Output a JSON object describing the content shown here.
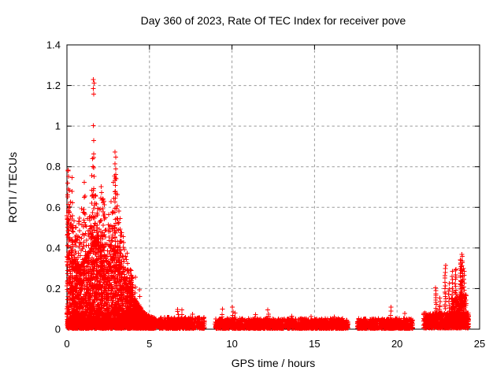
{
  "chart_data": {
    "type": "scatter",
    "title": "Day 360 of 2023, Rate Of TEC Index for receiver pove",
    "xlabel": "GPS time / hours",
    "ylabel": "ROTI / TECUs",
    "xlim": [
      0,
      25
    ],
    "ylim": [
      0,
      1.4
    ],
    "xticks": [
      [
        0,
        "0"
      ],
      [
        5,
        "5"
      ],
      [
        10,
        "10"
      ],
      [
        15,
        "15"
      ],
      [
        20,
        "20"
      ],
      [
        25,
        "25"
      ]
    ],
    "yticks": [
      [
        0,
        "0"
      ],
      [
        0.2,
        "0.2"
      ],
      [
        0.4,
        "0.4"
      ],
      [
        0.6,
        "0.6"
      ],
      [
        0.8,
        "0.8"
      ],
      [
        1,
        "1"
      ],
      [
        1.2,
        "1.2"
      ],
      [
        1.4,
        "1.4"
      ]
    ],
    "grid": true,
    "legend": "none",
    "marker": {
      "shape": "plus",
      "color": "#ff0000",
      "size": 7
    },
    "axis_color": "#000000",
    "grid_color": "#9b9b9b",
    "data_gaps_hours": [
      [
        8.35,
        8.97
      ],
      [
        17.05,
        17.6
      ],
      [
        20.95,
        21.6
      ],
      [
        24.35,
        25
      ]
    ],
    "storm_envelope": [
      [
        0.0,
        0.55,
        0.8
      ],
      [
        0.25,
        0.38,
        0.62
      ],
      [
        0.5,
        0.3,
        0.5
      ],
      [
        0.8,
        0.3,
        0.55
      ],
      [
        1.05,
        0.33,
        0.72
      ],
      [
        1.3,
        0.36,
        0.5
      ],
      [
        1.55,
        0.42,
        0.85
      ],
      [
        1.8,
        0.44,
        0.62
      ],
      [
        2.05,
        0.4,
        0.7
      ],
      [
        2.3,
        0.34,
        0.63
      ],
      [
        2.55,
        0.32,
        0.56
      ],
      [
        2.8,
        0.36,
        0.75
      ],
      [
        2.95,
        0.38,
        0.88
      ],
      [
        3.15,
        0.32,
        0.6
      ],
      [
        3.4,
        0.27,
        0.45
      ],
      [
        3.65,
        0.22,
        0.36
      ],
      [
        3.9,
        0.17,
        0.28
      ],
      [
        4.15,
        0.14,
        0.22
      ],
      [
        4.4,
        0.11,
        0.17
      ],
      [
        4.7,
        0.08,
        0.12
      ],
      [
        5.0,
        0.06,
        0.1
      ],
      [
        5.4,
        0.05,
        0.08
      ]
    ],
    "storm": {
      "n_dense": 2600,
      "n_fringe": 420,
      "xmax": 5.4,
      "fringe_xmax": 4.0
    },
    "bands": [
      {
        "x0": 0.0,
        "x1": 5.4,
        "n": 1100,
        "y0": 0.004,
        "amp": 0.05,
        "exp": 1.0
      },
      {
        "x0": 5.4,
        "x1": 8.35,
        "n": 520,
        "y0": 0.004,
        "amp": 0.055,
        "exp": 1.8
      },
      {
        "x0": 8.97,
        "x1": 17.05,
        "n": 1600,
        "y0": 0.004,
        "amp": 0.048,
        "exp": 1.8
      },
      {
        "x0": 17.6,
        "x1": 20.95,
        "n": 680,
        "y0": 0.004,
        "amp": 0.048,
        "exp": 1.8
      },
      {
        "x0": 21.6,
        "x1": 24.35,
        "n": 620,
        "y0": 0.005,
        "amp": 0.075,
        "exp": 1.6
      },
      {
        "x0": 23.3,
        "x1": 24.2,
        "n": 300,
        "y0": 0.01,
        "amp": 0.16,
        "exp": 2.0
      }
    ],
    "columns": [
      [
        0.07,
        0.15,
        0.78,
        12
      ],
      [
        0.15,
        0.12,
        0.6,
        8
      ],
      [
        0.33,
        0.15,
        0.74,
        12
      ],
      [
        0.55,
        0.12,
        0.5,
        8
      ],
      [
        0.78,
        0.15,
        0.55,
        8
      ],
      [
        1.05,
        0.2,
        0.72,
        10
      ],
      [
        1.18,
        0.15,
        0.5,
        7
      ],
      [
        1.32,
        0.2,
        0.47,
        6
      ],
      [
        1.45,
        0.25,
        0.56,
        7
      ],
      [
        1.62,
        0.3,
        0.8,
        12
      ],
      [
        1.8,
        0.25,
        0.62,
        8
      ],
      [
        2.06,
        0.3,
        0.7,
        9
      ],
      [
        2.2,
        0.25,
        0.64,
        8
      ],
      [
        2.35,
        0.2,
        0.55,
        7
      ],
      [
        2.55,
        0.22,
        0.56,
        7
      ],
      [
        2.72,
        0.25,
        0.5,
        6
      ],
      [
        2.93,
        0.35,
        0.76,
        18
      ],
      [
        3.05,
        0.3,
        0.66,
        8
      ],
      [
        3.2,
        0.25,
        0.55,
        7
      ],
      [
        3.42,
        0.2,
        0.46,
        6
      ],
      [
        3.65,
        0.18,
        0.37,
        6
      ],
      [
        3.9,
        0.15,
        0.29,
        5
      ],
      [
        4.15,
        0.12,
        0.25,
        5
      ],
      [
        4.4,
        0.1,
        0.19,
        4
      ],
      [
        6.72,
        0.03,
        0.1,
        6
      ],
      [
        6.95,
        0.03,
        0.09,
        5
      ],
      [
        7.6,
        0.02,
        0.07,
        4
      ],
      [
        9.42,
        0.03,
        0.095,
        5
      ],
      [
        10.05,
        0.03,
        0.105,
        6
      ],
      [
        10.18,
        0.03,
        0.085,
        4
      ],
      [
        11.4,
        0.02,
        0.07,
        4
      ],
      [
        12.2,
        0.03,
        0.095,
        5
      ],
      [
        13.6,
        0.02,
        0.068,
        4
      ],
      [
        14.8,
        0.02,
        0.06,
        3
      ],
      [
        16.2,
        0.02,
        0.065,
        4
      ],
      [
        19.62,
        0.03,
        0.105,
        5
      ],
      [
        20.45,
        0.02,
        0.078,
        4
      ],
      [
        22.35,
        0.08,
        0.2,
        12
      ],
      [
        22.6,
        0.06,
        0.15,
        8
      ],
      [
        22.92,
        0.1,
        0.31,
        16
      ],
      [
        23.15,
        0.08,
        0.22,
        10
      ],
      [
        23.35,
        0.1,
        0.28,
        12
      ],
      [
        23.55,
        0.1,
        0.3,
        16
      ],
      [
        23.85,
        0.12,
        0.345,
        26
      ],
      [
        23.95,
        0.1,
        0.37,
        22
      ],
      [
        24.05,
        0.08,
        0.3,
        14
      ]
    ],
    "outliers": [
      [
        1.6,
        1.23
      ],
      [
        1.64,
        1.212
      ],
      [
        1.61,
        1.185
      ],
      [
        1.625,
        1.158
      ],
      [
        1.605,
        1.002
      ],
      [
        1.63,
        0.928
      ],
      [
        1.615,
        0.862
      ],
      [
        1.62,
        0.845
      ],
      [
        2.9,
        0.872
      ],
      [
        2.95,
        0.848
      ],
      [
        2.92,
        0.815
      ],
      [
        2.96,
        0.79
      ],
      [
        0.07,
        0.78
      ],
      [
        0.1,
        0.752
      ],
      [
        1.55,
        0.84
      ],
      [
        2.88,
        0.755
      ],
      [
        2.93,
        0.745
      ],
      [
        2.97,
        0.74
      ]
    ]
  }
}
